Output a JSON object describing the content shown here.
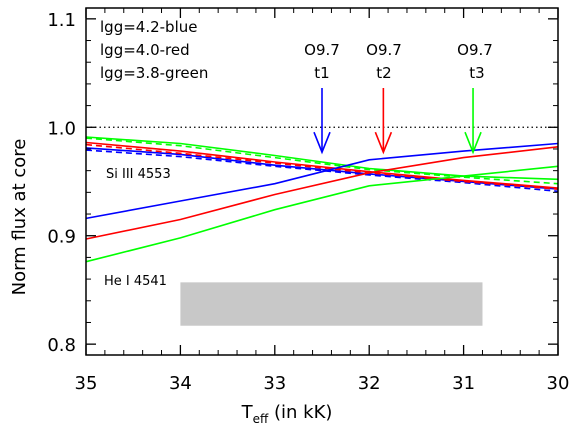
{
  "chart_data": {
    "type": "line",
    "xlabel_main": "T",
    "xlabel_sub": "eff",
    "xlabel_rest": " (in kK)",
    "ylabel": "Norm flux at core",
    "xlim": [
      35,
      30
    ],
    "ylim": [
      0.79,
      1.11
    ],
    "x_ticks": [
      35,
      34,
      33,
      32,
      31,
      30
    ],
    "y_ticks": [
      0.8,
      0.9,
      1.0,
      1.1
    ],
    "y_tick_labels": [
      "0.8",
      "0.9",
      "1.0",
      "1.1"
    ],
    "grid": false,
    "legend_text": [
      "lgg=4.2-blue",
      "lgg=4.0-red",
      "lgg=3.8-green"
    ],
    "reference_line": {
      "y": 1.0,
      "style": "dotted"
    },
    "line_labels": [
      {
        "text": "Si III 4553",
        "x": 34.3,
        "y": 0.93
      },
      {
        "text": "He I 4541",
        "x": 34.4,
        "y": 0.865
      }
    ],
    "shaded_band": {
      "x": [
        34.0,
        30.8
      ],
      "y": [
        0.817,
        0.857
      ],
      "color": "#c8c8c8"
    },
    "arrows": [
      {
        "label_top": "O9.7",
        "label_bottom": "t1",
        "x": 32.5,
        "color": "#0000ff"
      },
      {
        "label_top": "O9.7",
        "label_bottom": "t2",
        "x": 31.85,
        "color": "#ff0000"
      },
      {
        "label_top": "O9.7",
        "label_bottom": "t3",
        "x": 30.9,
        "color": "#00ff00"
      }
    ],
    "series": [
      {
        "line": "Si III 4553",
        "color": "#0000ff",
        "dash": false,
        "x": [
          35,
          34,
          33,
          32,
          31,
          30
        ],
        "y": [
          0.981,
          0.975,
          0.965,
          0.957,
          0.95,
          0.943
        ]
      },
      {
        "line": "Si III 4553",
        "color": "#0000ff",
        "dash": true,
        "x": [
          35,
          34,
          33,
          32,
          31,
          30
        ],
        "y": [
          0.979,
          0.973,
          0.964,
          0.956,
          0.949,
          0.941
        ]
      },
      {
        "line": "Si III 4553",
        "color": "#ff0000",
        "dash": false,
        "x": [
          35,
          34,
          33,
          32,
          31,
          30
        ],
        "y": [
          0.986,
          0.978,
          0.968,
          0.959,
          0.951,
          0.944
        ]
      },
      {
        "line": "Si III 4553",
        "color": "#ff0000",
        "dash": true,
        "x": [
          35,
          34,
          33,
          32,
          31,
          30
        ],
        "y": [
          0.984,
          0.976,
          0.967,
          0.958,
          0.95,
          0.943
        ]
      },
      {
        "line": "Si III 4553",
        "color": "#00ff00",
        "dash": false,
        "x": [
          35,
          34,
          33,
          32,
          31,
          30
        ],
        "y": [
          0.991,
          0.985,
          0.974,
          0.962,
          0.955,
          0.952
        ]
      },
      {
        "line": "Si III 4553",
        "color": "#00ff00",
        "dash": true,
        "x": [
          35,
          34,
          33,
          32,
          31,
          30
        ],
        "y": [
          0.99,
          0.983,
          0.972,
          0.961,
          0.954,
          0.948
        ]
      },
      {
        "line": "He I 4541",
        "color": "#0000ff",
        "dash": false,
        "x": [
          35,
          34,
          33,
          32,
          31,
          30
        ],
        "y": [
          0.916,
          0.932,
          0.948,
          0.97,
          0.978,
          0.985
        ]
      },
      {
        "line": "He I 4541",
        "color": "#ff0000",
        "dash": false,
        "x": [
          35,
          34,
          33,
          32,
          31,
          30
        ],
        "y": [
          0.897,
          0.915,
          0.938,
          0.958,
          0.972,
          0.982
        ]
      },
      {
        "line": "He I 4541",
        "color": "#00ff00",
        "dash": false,
        "x": [
          35,
          34,
          33,
          32,
          31,
          30
        ],
        "y": [
          0.876,
          0.898,
          0.924,
          0.946,
          0.955,
          0.964
        ]
      }
    ]
  }
}
